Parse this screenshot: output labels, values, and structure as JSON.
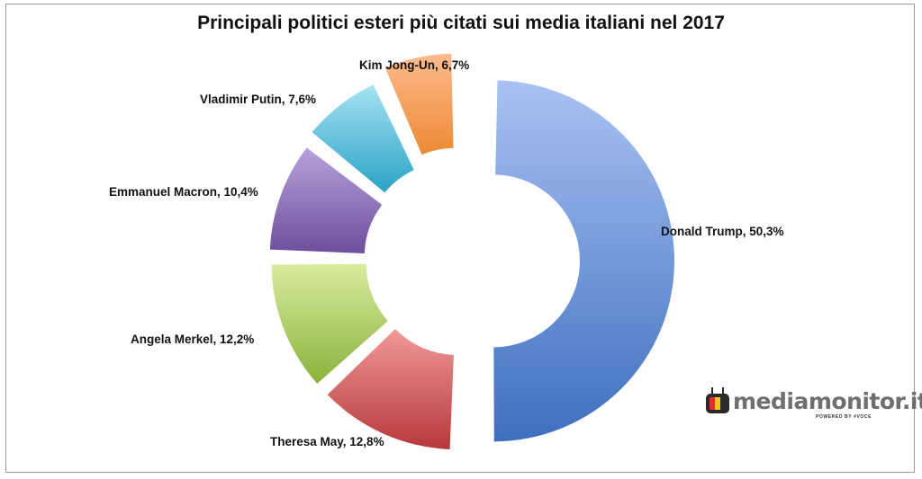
{
  "chart_data": {
    "type": "pie",
    "variant": "exploded-donut",
    "title": "Principali politici esteri più citati sui media italiani nel 2017",
    "slices": [
      {
        "name": "Donald Trump",
        "value": 50.3,
        "label": "Donald Trump, 50,3%",
        "color_top": "#a9c2f2",
        "color_bottom": "#3e6fbf"
      },
      {
        "name": "Theresa May",
        "value": 12.8,
        "label": "Theresa May, 12,8%",
        "color_top": "#ef9a98",
        "color_bottom": "#b7383a"
      },
      {
        "name": "Angela Merkel",
        "value": 12.2,
        "label": "Angela Merkel, 12,2%",
        "color_top": "#d7ec9e",
        "color_bottom": "#8bb23c"
      },
      {
        "name": "Emmanuel Macron",
        "value": 10.4,
        "label": "Emmanuel Macron, 10,4%",
        "color_top": "#b8a2dc",
        "color_bottom": "#6c4e9c"
      },
      {
        "name": "Vladimir Putin",
        "value": 7.6,
        "label": "Vladimir Putin, 7,6%",
        "color_top": "#a7e2f3",
        "color_bottom": "#2aa3c6"
      },
      {
        "name": "Kim Jong-Un",
        "value": 6.7,
        "label": "Kim Jong-Un, 6,7%",
        "color_top": "#fdbb8e",
        "color_bottom": "#ec8a34"
      }
    ],
    "legend": "none"
  },
  "logo": {
    "text": "mediamonitor.it",
    "tagline": "POWERED BY #VOCE",
    "tv_colors": [
      "#e03131",
      "#f5c518",
      "#2b2b2b"
    ]
  }
}
